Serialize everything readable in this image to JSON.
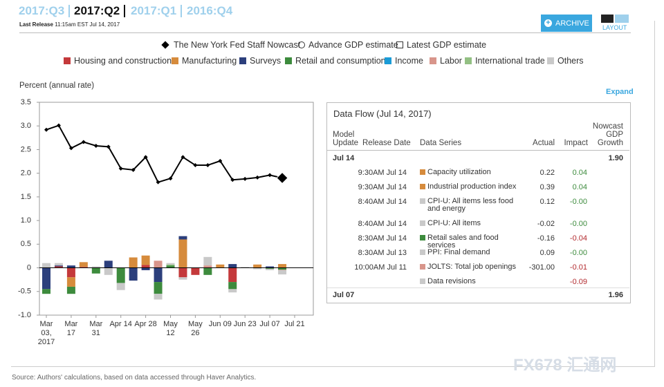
{
  "header": {
    "tabs": [
      "2017:Q3",
      "2017:Q2",
      "2017:Q1",
      "2016:Q4"
    ],
    "active_tab": 1,
    "last_release_label": "Last Release",
    "last_release": "11:15am EST Jul 14, 2017",
    "archive": "ARCHIVE",
    "layout": "LAYOUT"
  },
  "chart_data": {
    "type": "combo",
    "y_label": "Percent (annual rate)",
    "categories": [
      "Mar 03, 2017",
      null,
      "Mar 17",
      null,
      "Mar 31",
      null,
      "Apr 14",
      null,
      "Apr 28",
      null,
      "May 12",
      null,
      "May 26",
      null,
      "Jun 09",
      null,
      "Jun 23",
      null,
      "Jul 07",
      null,
      "Jul 21"
    ],
    "line": {
      "name": "The New York Fed Staff Nowcast",
      "color": "#000000",
      "values": [
        2.92,
        3.01,
        2.53,
        2.66,
        2.58,
        2.56,
        2.1,
        2.07,
        2.34,
        1.81,
        1.89,
        2.34,
        2.17,
        2.17,
        2.26,
        1.86,
        1.88,
        1.91,
        1.96,
        1.9,
        null
      ]
    },
    "estimates": [
      {
        "name": "Advance GDP estimate",
        "marker": "circle"
      },
      {
        "name": "Latest GDP estimate",
        "marker": "square"
      }
    ],
    "series": [
      {
        "name": "Housing and construction",
        "color": "#c4393b",
        "values": [
          0,
          0.03,
          -0.2,
          0.02,
          0,
          0,
          0,
          0,
          0.06,
          0,
          0,
          -0.2,
          -0.15,
          0,
          0,
          -0.3,
          0,
          0,
          0,
          0,
          null
        ]
      },
      {
        "name": "Manufacturing",
        "color": "#d68b3c",
        "values": [
          0,
          0,
          -0.2,
          0.1,
          0,
          0,
          0,
          0.22,
          0.2,
          0,
          0,
          0.6,
          0,
          0,
          0.07,
          0,
          0,
          0.07,
          0,
          0.08,
          null
        ]
      },
      {
        "name": "Surveys",
        "color": "#2c3f7c",
        "values": [
          -0.45,
          0.02,
          0.05,
          0,
          0,
          0.15,
          0,
          -0.27,
          -0.05,
          -0.3,
          0,
          0.07,
          0,
          0,
          0,
          0.08,
          0,
          0,
          0.03,
          0,
          null
        ]
      },
      {
        "name": "Retail and consumption",
        "color": "#3d8b3d",
        "values": [
          -0.1,
          0,
          -0.15,
          0,
          -0.12,
          0,
          -0.32,
          0,
          0,
          -0.25,
          0.05,
          0,
          0,
          -0.15,
          0,
          -0.15,
          0,
          0,
          -0.02,
          -0.04,
          null
        ]
      },
      {
        "name": "Income",
        "color": "#1a9bd7",
        "values": [
          0,
          0,
          0,
          0,
          0,
          0,
          0,
          0,
          0,
          0,
          0,
          0,
          0,
          0,
          0,
          0,
          0,
          0,
          0,
          0,
          null
        ]
      },
      {
        "name": "Labor",
        "color": "#d8958b",
        "values": [
          0,
          0,
          0,
          0,
          0,
          0,
          0,
          0,
          0,
          0.15,
          0,
          0,
          0,
          0.05,
          0,
          0,
          0,
          0,
          0,
          -0.01,
          null
        ]
      },
      {
        "name": "International trade",
        "color": "#93c083",
        "values": [
          0,
          0,
          0,
          0,
          0,
          0,
          0,
          0,
          0,
          0,
          0.02,
          0,
          0,
          0,
          0,
          0,
          0,
          0,
          0,
          0,
          null
        ]
      },
      {
        "name": "Others",
        "color": "#c9c9c9",
        "values": [
          0.1,
          0.05,
          0,
          0,
          0.03,
          -0.15,
          -0.15,
          0,
          0,
          -0.12,
          0.03,
          -0.05,
          0,
          0.18,
          0,
          -0.07,
          0.02,
          -0.03,
          -0.03,
          -0.09,
          null
        ]
      }
    ],
    "ylim": [
      -1.0,
      3.5
    ],
    "yticks": [
      {
        "value": -1,
        "label": "-1.0"
      },
      -0.5,
      0,
      0.5,
      {
        "value": 1,
        "label": "1.0"
      },
      1.5,
      {
        "value": 2,
        "label": "2.0"
      },
      2.5,
      {
        "value": 3,
        "label": "3.0"
      },
      3.5
    ],
    "grid": false
  },
  "expand": "Expand",
  "table": {
    "title": "Data Flow (Jul 14, 2017)",
    "columns": [
      "Model Update",
      "Release Date",
      "Data Series",
      "Actual",
      "Impact",
      "Nowcast GDP Growth"
    ],
    "groups": [
      {
        "model_update": "Jul 14",
        "nowcast": "1.90",
        "rows": [
          {
            "release_date": "9:30AM Jul 14",
            "color": "#d68b3c",
            "series": "Capacity utilization",
            "actual": "0.22",
            "impact": "0.04"
          },
          {
            "release_date": "9:30AM Jul 14",
            "color": "#d68b3c",
            "series": "Industrial production index",
            "actual": "0.39",
            "impact": "0.04"
          },
          {
            "release_date": "8:40AM Jul 14",
            "color": "#c9c9c9",
            "series": "CPI-U: All items less food and energy",
            "actual": "0.12",
            "impact": "-0.00"
          },
          {
            "release_date": "8:40AM Jul 14",
            "color": "#c9c9c9",
            "series": "CPI-U: All items",
            "actual": "-0.02",
            "impact": "-0.00"
          },
          {
            "release_date": "8:30AM Jul 14",
            "color": "#3d8b3d",
            "series": "Retail sales and food services",
            "actual": "-0.16",
            "impact": "-0.04"
          },
          {
            "release_date": "8:30AM Jul 13",
            "color": "#c9c9c9",
            "series": "PPI: Final demand",
            "actual": "0.09",
            "impact": "-0.00"
          },
          {
            "release_date": "10:00AM Jul 11",
            "color": "#d8958b",
            "series": "JOLTS: Total job openings",
            "actual": "-301.00",
            "impact": "-0.01"
          },
          {
            "release_date": null,
            "color": "#c9c9c9",
            "series": "Data revisions",
            "actual": null,
            "impact": "-0.09"
          }
        ]
      },
      {
        "model_update": "Jul 07",
        "nowcast": "1.96",
        "rows": []
      }
    ]
  },
  "source": "Source: Authors' calculations, based on data accessed through Haver Analytics.",
  "watermark": "FX678 汇通网"
}
